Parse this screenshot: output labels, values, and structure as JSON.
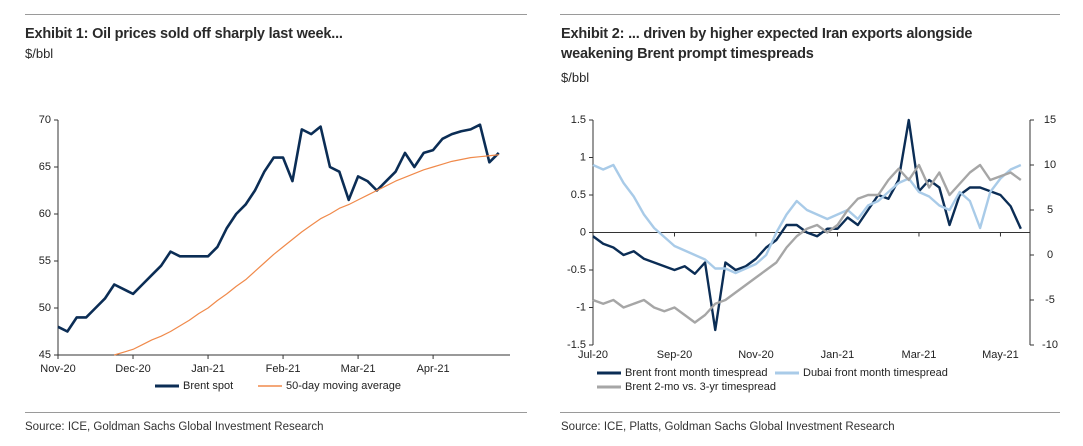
{
  "chart_data": [
    {
      "type": "line",
      "title": "Exhibit 1: Oil prices sold off sharply last week...",
      "subtitle": "$/bbl",
      "categories": [
        "Nov-20",
        null,
        null,
        null,
        null,
        null,
        null,
        null,
        "Dec-20",
        null,
        null,
        null,
        null,
        null,
        null,
        null,
        "Jan-21",
        null,
        null,
        null,
        null,
        null,
        null,
        null,
        "Feb-21",
        null,
        null,
        null,
        null,
        null,
        null,
        null,
        "Mar-21",
        null,
        null,
        null,
        null,
        null,
        null,
        null,
        "Apr-21",
        null,
        null,
        null,
        null,
        null,
        null,
        null
      ],
      "series": [
        {
          "name": "Brent spot",
          "color": "#0b2d55",
          "values": [
            48,
            47.5,
            49,
            49,
            50,
            51,
            52.5,
            52,
            51.5,
            52.5,
            53.5,
            54.5,
            56,
            55.5,
            55.5,
            55.5,
            55.5,
            56.5,
            58.5,
            60,
            61,
            62.5,
            64.5,
            66,
            66,
            63.5,
            69,
            68.5,
            69.3,
            65,
            64.5,
            61.5,
            64,
            63.5,
            62.5,
            63.5,
            64.5,
            66.5,
            65,
            66.5,
            66.8,
            68,
            68.5,
            68.8,
            69,
            69.5,
            65.5,
            66.5
          ]
        },
        {
          "name": "50-day moving average",
          "color": "#f08a4b",
          "values": [
            null,
            null,
            null,
            null,
            null,
            null,
            45.0,
            45.3,
            45.6,
            46.1,
            46.6,
            47.0,
            47.5,
            48.1,
            48.7,
            49.4,
            50.0,
            50.8,
            51.5,
            52.3,
            53.0,
            53.9,
            54.8,
            55.7,
            56.5,
            57.3,
            58.1,
            58.8,
            59.5,
            60.0,
            60.6,
            61.0,
            61.5,
            62.0,
            62.5,
            63.0,
            63.5,
            63.9,
            64.3,
            64.7,
            65.0,
            65.3,
            65.6,
            65.8,
            66.0,
            66.1,
            66.2,
            66.3
          ]
        }
      ],
      "ylim": [
        45,
        70
      ],
      "yticks": [
        45,
        50,
        55,
        60,
        65,
        70
      ],
      "legend": "bottom",
      "source": "Source: ICE, Goldman Sachs Global Investment Research"
    },
    {
      "type": "line",
      "title": "Exhibit 2: ... driven by higher expected Iran exports alongside weakening Brent prompt timespreads",
      "subtitle": "$/bbl",
      "categories": [
        "Jul-20",
        null,
        null,
        null,
        null,
        null,
        null,
        null,
        "Sep-20",
        null,
        null,
        null,
        null,
        null,
        null,
        null,
        "Nov-20",
        null,
        null,
        null,
        null,
        null,
        null,
        null,
        "Jan-21",
        null,
        null,
        null,
        null,
        null,
        null,
        null,
        "Mar-21",
        null,
        null,
        null,
        null,
        null,
        null,
        null,
        "May-21",
        null,
        null
      ],
      "series": [
        {
          "name": "Brent front month timespread",
          "color": "#0b2d55",
          "values": [
            -0.05,
            -0.15,
            -0.2,
            -0.3,
            -0.25,
            -0.35,
            -0.4,
            -0.45,
            -0.5,
            -0.45,
            -0.55,
            -0.4,
            -1.3,
            -0.4,
            -0.5,
            -0.45,
            -0.35,
            -0.2,
            -0.1,
            0.1,
            0.1,
            0,
            -0.05,
            0.05,
            0.05,
            0.2,
            0.1,
            0.3,
            0.5,
            0.45,
            0.7,
            1.5,
            0.55,
            0.7,
            0.6,
            0.1,
            0.5,
            0.6,
            0.6,
            0.55,
            0.5,
            0.35,
            0.05
          ]
        },
        {
          "name": "Dubai front month timespread",
          "color": "#a9cbe8",
          "axis": "y2",
          "values": [
            10,
            9.5,
            10,
            8,
            6.5,
            4.5,
            3,
            2,
            1,
            0.5,
            0,
            -0.5,
            -1.5,
            -1.5,
            -2,
            -1.5,
            -1,
            0,
            2.5,
            4.5,
            6,
            5,
            4.5,
            4,
            4.5,
            5,
            4,
            5.5,
            6,
            7,
            8,
            8.5,
            7,
            6.5,
            5.5,
            5,
            7,
            6,
            3,
            7,
            8.5,
            9.5,
            10
          ]
        },
        {
          "name": "Brent 2-mo vs. 3-yr timespread",
          "color": "#a6a6a6",
          "values": [
            -0.9,
            -0.95,
            -0.9,
            -1.0,
            -0.95,
            -0.9,
            -1.0,
            -1.05,
            -1.0,
            -1.1,
            -1.2,
            -1.1,
            -0.95,
            -0.9,
            -0.8,
            -0.7,
            -0.6,
            -0.5,
            -0.4,
            -0.2,
            -0.05,
            0.05,
            0.1,
            0,
            0.1,
            0.3,
            0.45,
            0.5,
            0.5,
            0.7,
            0.85,
            0.7,
            0.9,
            0.6,
            0.8,
            0.5,
            0.65,
            0.8,
            0.9,
            0.7,
            0.75,
            0.8,
            0.7
          ]
        }
      ],
      "ylim": [
        -1.5,
        1.5
      ],
      "yticks": [
        -1.5,
        -1,
        -0.5,
        0,
        0.5,
        1,
        1.5
      ],
      "y2lim": [
        -10,
        15
      ],
      "y2ticks": [
        -10,
        -5,
        0,
        5,
        10,
        15
      ],
      "legend": "bottom",
      "source": "Source: ICE, Platts, Goldman Sachs Global Investment Research"
    }
  ]
}
